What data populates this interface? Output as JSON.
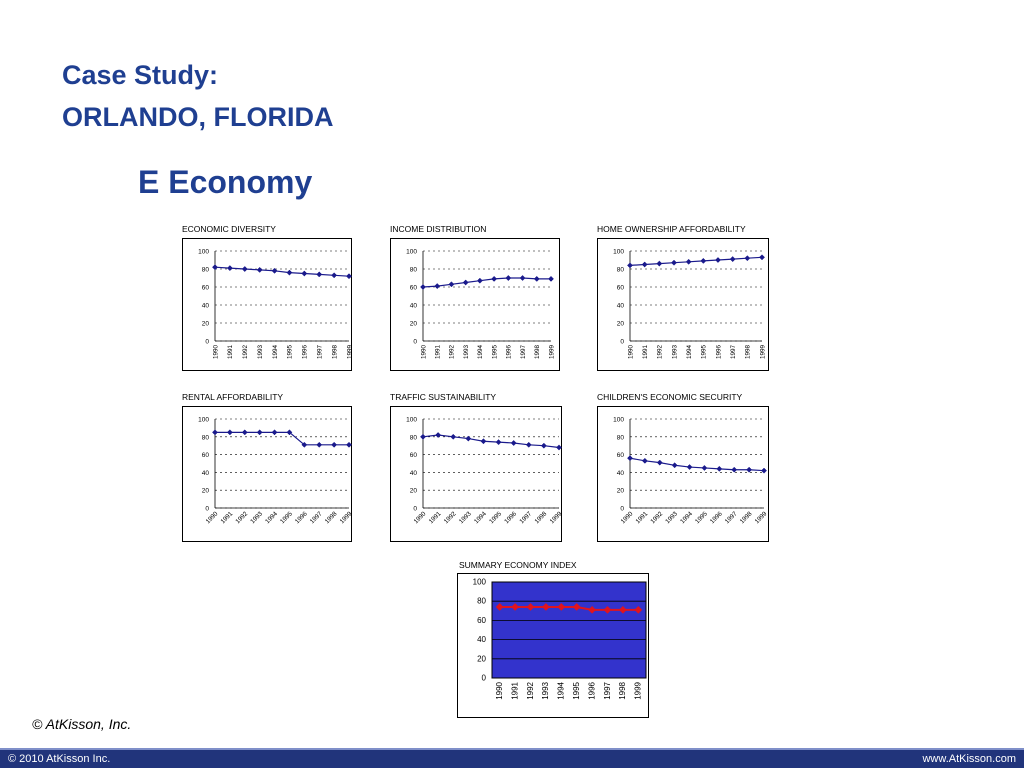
{
  "header": {
    "title_line1": "Case Study:",
    "title_line2": "ORLANDO, FLORIDA",
    "section_title": "E  Economy"
  },
  "colors": {
    "title": "#1f3f91",
    "series_line": "#1a1a8c",
    "summary_fill": "#3333cc",
    "summary_line": "#e0141e",
    "footer_bg": "#21347b"
  },
  "chart_data": [
    {
      "id": "economic-diversity",
      "type": "line",
      "title": "ECONOMIC DIVERSITY",
      "x": [
        "1990",
        "1991",
        "1992",
        "1993",
        "1994",
        "1995",
        "1996",
        "1997",
        "1998",
        "1999"
      ],
      "values": [
        82,
        81,
        80,
        79,
        78,
        76,
        75,
        74,
        73,
        72
      ],
      "ylim": [
        0,
        100
      ],
      "yticks": [
        0,
        20,
        40,
        60,
        80,
        100
      ],
      "grid": "dotted",
      "x_label_rotation": "vertical"
    },
    {
      "id": "income-distribution",
      "type": "line",
      "title": "INCOME DISTRIBUTION",
      "x": [
        "1990",
        "1991",
        "1992",
        "1993",
        "1994",
        "1995",
        "1996",
        "1997",
        "1998",
        "1999"
      ],
      "values": [
        60,
        61,
        63,
        65,
        67,
        69,
        70,
        70,
        69,
        69
      ],
      "ylim": [
        0,
        100
      ],
      "yticks": [
        0,
        20,
        40,
        60,
        80,
        100
      ],
      "grid": "dotted",
      "x_label_rotation": "vertical"
    },
    {
      "id": "home-ownership-affordability",
      "type": "line",
      "title": "HOME OWNERSHIP AFFORDABILITY",
      "x": [
        "1990",
        "1991",
        "1992",
        "1993",
        "1994",
        "1995",
        "1996",
        "1997",
        "1998",
        "1999"
      ],
      "values": [
        84,
        85,
        86,
        87,
        88,
        89,
        90,
        91,
        92,
        93
      ],
      "ylim": [
        0,
        100
      ],
      "yticks": [
        0,
        20,
        40,
        60,
        80,
        100
      ],
      "grid": "dotted",
      "x_label_rotation": "vertical"
    },
    {
      "id": "rental-affordability",
      "type": "line",
      "title": "RENTAL AFFORDABILITY",
      "x": [
        "1990",
        "1991",
        "1992",
        "1993",
        "1994",
        "1995",
        "1996",
        "1997",
        "1998",
        "1999"
      ],
      "values": [
        85,
        85,
        85,
        85,
        85,
        85,
        71,
        71,
        71,
        71
      ],
      "ylim": [
        0,
        100
      ],
      "yticks": [
        0,
        20,
        40,
        60,
        80,
        100
      ],
      "grid": "dotted",
      "x_label_rotation": "diagonal"
    },
    {
      "id": "traffic-sustainability",
      "type": "line",
      "title": "TRAFFIC SUSTAINABILITY",
      "x": [
        "1990",
        "1991",
        "1992",
        "1993",
        "1994",
        "1995",
        "1996",
        "1997",
        "1998",
        "1999"
      ],
      "values": [
        80,
        82,
        80,
        78,
        75,
        74,
        73,
        71,
        70,
        68
      ],
      "ylim": [
        0,
        100
      ],
      "yticks": [
        0,
        20,
        40,
        60,
        80,
        100
      ],
      "grid": "dotted",
      "x_label_rotation": "diagonal"
    },
    {
      "id": "childrens-economic-security",
      "type": "line",
      "title": "CHILDREN'S ECONOMIC SECURITY",
      "x": [
        "1990",
        "1991",
        "1992",
        "1993",
        "1994",
        "1995",
        "1996",
        "1997",
        "1998",
        "1999"
      ],
      "values": [
        56,
        53,
        51,
        48,
        46,
        45,
        44,
        43,
        43,
        42
      ],
      "ylim": [
        0,
        100
      ],
      "yticks": [
        0,
        20,
        40,
        60,
        80,
        100
      ],
      "grid": "dotted",
      "x_label_rotation": "diagonal"
    },
    {
      "id": "summary-economy-index",
      "type": "line",
      "title": "SUMMARY ECONOMY INDEX",
      "x": [
        "1990",
        "1991",
        "1992",
        "1993",
        "1994",
        "1995",
        "1996",
        "1997",
        "1998",
        "1999"
      ],
      "values": [
        74,
        74,
        74,
        74,
        74,
        74,
        71,
        71,
        71,
        71
      ],
      "ylim": [
        0,
        100
      ],
      "yticks": [
        0,
        20,
        40,
        60,
        80,
        100
      ],
      "grid": "solid",
      "x_label_rotation": "vertical"
    }
  ],
  "footer": {
    "copyright_note": "© AtKisson, Inc.",
    "left_text": "© 2010 AtKisson Inc.",
    "right_text": "www.AtKisson.com"
  }
}
